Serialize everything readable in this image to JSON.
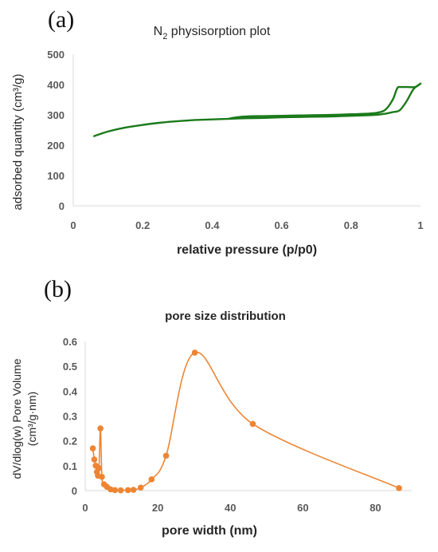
{
  "chart_data": [
    {
      "panel_label": "(a)",
      "type": "line",
      "title_main": "N",
      "title_sub": "2",
      "title_rest": " physisorption plot",
      "xlabel": "relative pressure (p/p0)",
      "ylabel": "adsorbed quantity (cm³/g)",
      "xlim": [
        0,
        1
      ],
      "ylim": [
        0,
        500
      ],
      "xticks": [
        "0",
        "0.2",
        "0.4",
        "0.6",
        "0.8",
        "1"
      ],
      "xtick_values": [
        0,
        0.2,
        0.4,
        0.6,
        0.8,
        1
      ],
      "yticks": [
        "0",
        "100",
        "200",
        "300",
        "400",
        "500"
      ],
      "ytick_values": [
        0,
        100,
        200,
        300,
        400,
        500
      ],
      "grid": false,
      "color": "#1a7a1a",
      "series": [
        {
          "x": [
            0.06,
            0.1,
            0.15,
            0.2,
            0.25,
            0.3,
            0.35,
            0.4,
            0.45,
            0.5,
            0.55,
            0.6,
            0.65,
            0.7,
            0.75,
            0.8,
            0.85,
            0.88,
            0.9,
            0.92,
            0.94,
            0.96,
            0.98,
            1.0
          ],
          "y": [
            230,
            245,
            258,
            267,
            274,
            279,
            283,
            285,
            287,
            289,
            290,
            292,
            293,
            294,
            295,
            297,
            299,
            301,
            304,
            309,
            315,
            345,
            385,
            403
          ]
        },
        {
          "x": [
            1.0,
            0.985,
            0.96,
            0.94,
            0.935,
            0.93,
            0.92,
            0.9,
            0.88,
            0.85,
            0.8,
            0.75,
            0.7,
            0.65,
            0.6,
            0.55,
            0.5,
            0.47,
            0.45
          ],
          "y": [
            403,
            392,
            392,
            392,
            391,
            380,
            350,
            318,
            308,
            304,
            302,
            300,
            299,
            298,
            297,
            296,
            295,
            292,
            288
          ]
        }
      ]
    },
    {
      "panel_label": "(b)",
      "type": "line",
      "title": "pore size distribution",
      "xlabel": "pore width (nm)",
      "ylabel": "dV/dlog(w) Pore Volume",
      "ylabel2": "(cm³/g·nm)",
      "xlim": [
        0,
        90
      ],
      "ylim": [
        0,
        0.6
      ],
      "xticks": [
        "0",
        "20",
        "40",
        "60",
        "80"
      ],
      "xtick_values": [
        0,
        20,
        40,
        60,
        80
      ],
      "yticks": [
        "0",
        "0.1",
        "0.2",
        "0.3",
        "0.4",
        "0.5",
        "0.6"
      ],
      "ytick_values": [
        0,
        0.1,
        0.2,
        0.3,
        0.4,
        0.5,
        0.6
      ],
      "grid": false,
      "color": "#ee8533",
      "x": [
        2.1,
        2.5,
        2.9,
        3.2,
        3.5,
        3.8,
        4.2,
        4.6,
        5.2,
        6.0,
        7.0,
        8.2,
        9.8,
        11.8,
        13.3,
        15.3,
        18.3,
        22.3,
        30.2,
        46.2,
        86.5
      ],
      "y": [
        0.17,
        0.125,
        0.1,
        0.075,
        0.06,
        0.09,
        0.25,
        0.055,
        0.025,
        0.015,
        0.005,
        0.002,
        0.001,
        0.002,
        0.003,
        0.012,
        0.045,
        0.14,
        0.555,
        0.268,
        0.01
      ]
    }
  ]
}
